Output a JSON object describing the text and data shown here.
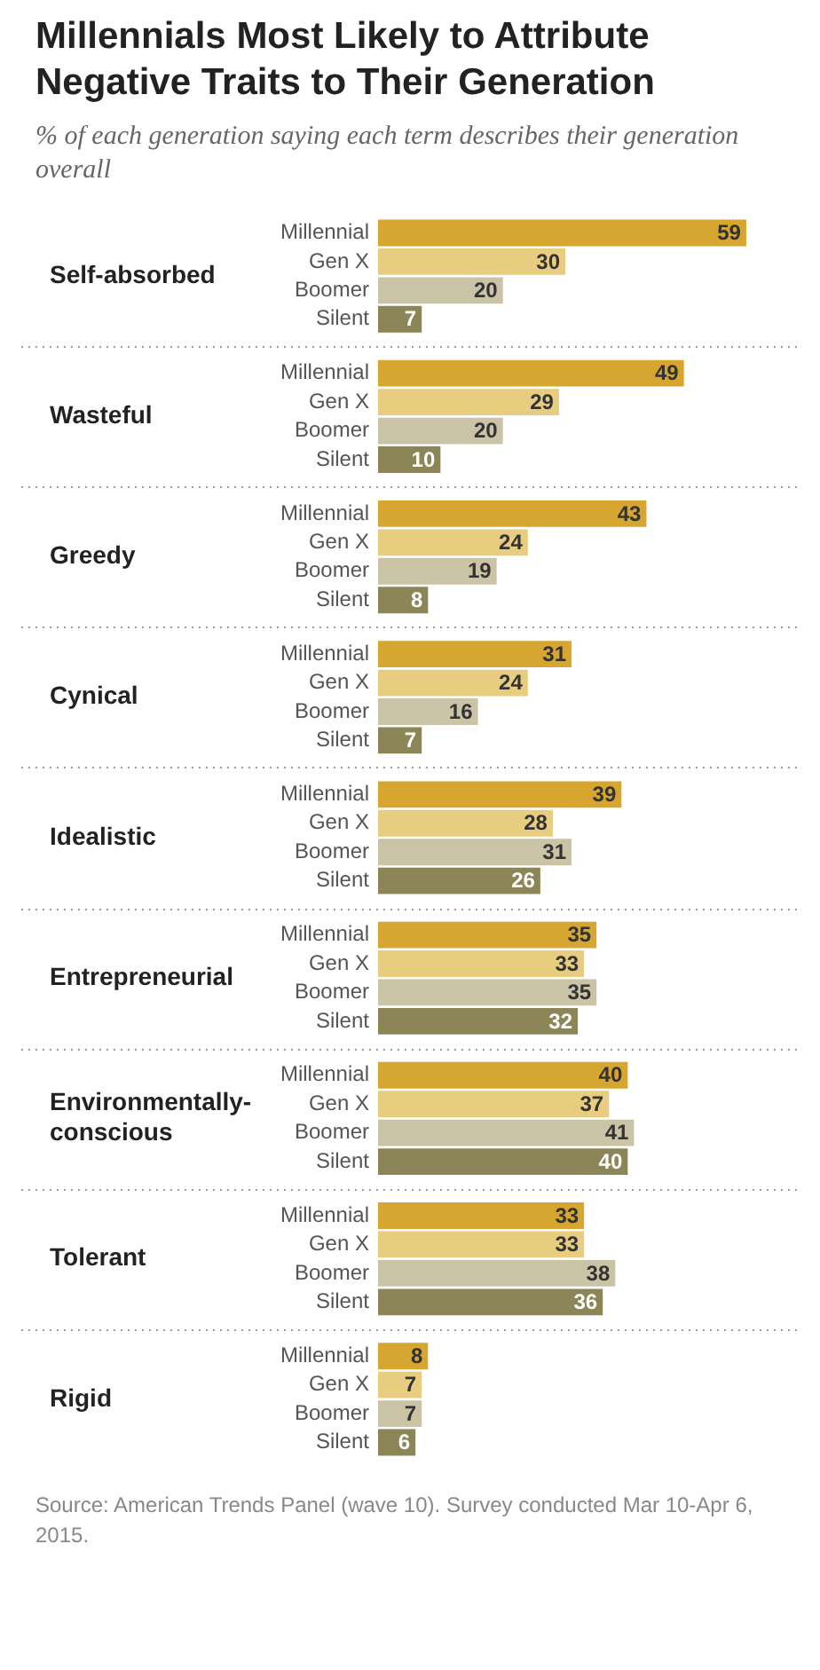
{
  "chart_data": {
    "type": "bar",
    "orientation": "horizontal",
    "title": "Millennials Most Likely to Attribute Negative Traits to Their Generation",
    "subtitle": "% of each generation saying each term describes their generation overall",
    "categories": [
      "Self-absorbed",
      "Wasteful",
      "Greedy",
      "Cynical",
      "Idealistic",
      "Entrepreneurial",
      "Environmentally-conscious",
      "Tolerant",
      "Rigid"
    ],
    "series": [
      {
        "name": "Millennial",
        "color": "#d6a630",
        "values": [
          59,
          49,
          43,
          31,
          39,
          35,
          40,
          33,
          8
        ]
      },
      {
        "name": "Gen X",
        "color": "#e8cd80",
        "values": [
          30,
          29,
          24,
          24,
          28,
          33,
          37,
          33,
          7
        ]
      },
      {
        "name": "Boomer",
        "color": "#cbc3a6",
        "values": [
          20,
          20,
          19,
          16,
          31,
          35,
          41,
          38,
          7
        ]
      },
      {
        "name": "Silent",
        "color": "#8c8557",
        "values": [
          7,
          10,
          8,
          7,
          26,
          32,
          40,
          36,
          6
        ]
      }
    ],
    "legend": false,
    "data_labels": true,
    "annotations": [
      "Source: American Trends Panel (wave 10). Survey conducted Mar 10-Apr 6, 2015."
    ]
  }
}
